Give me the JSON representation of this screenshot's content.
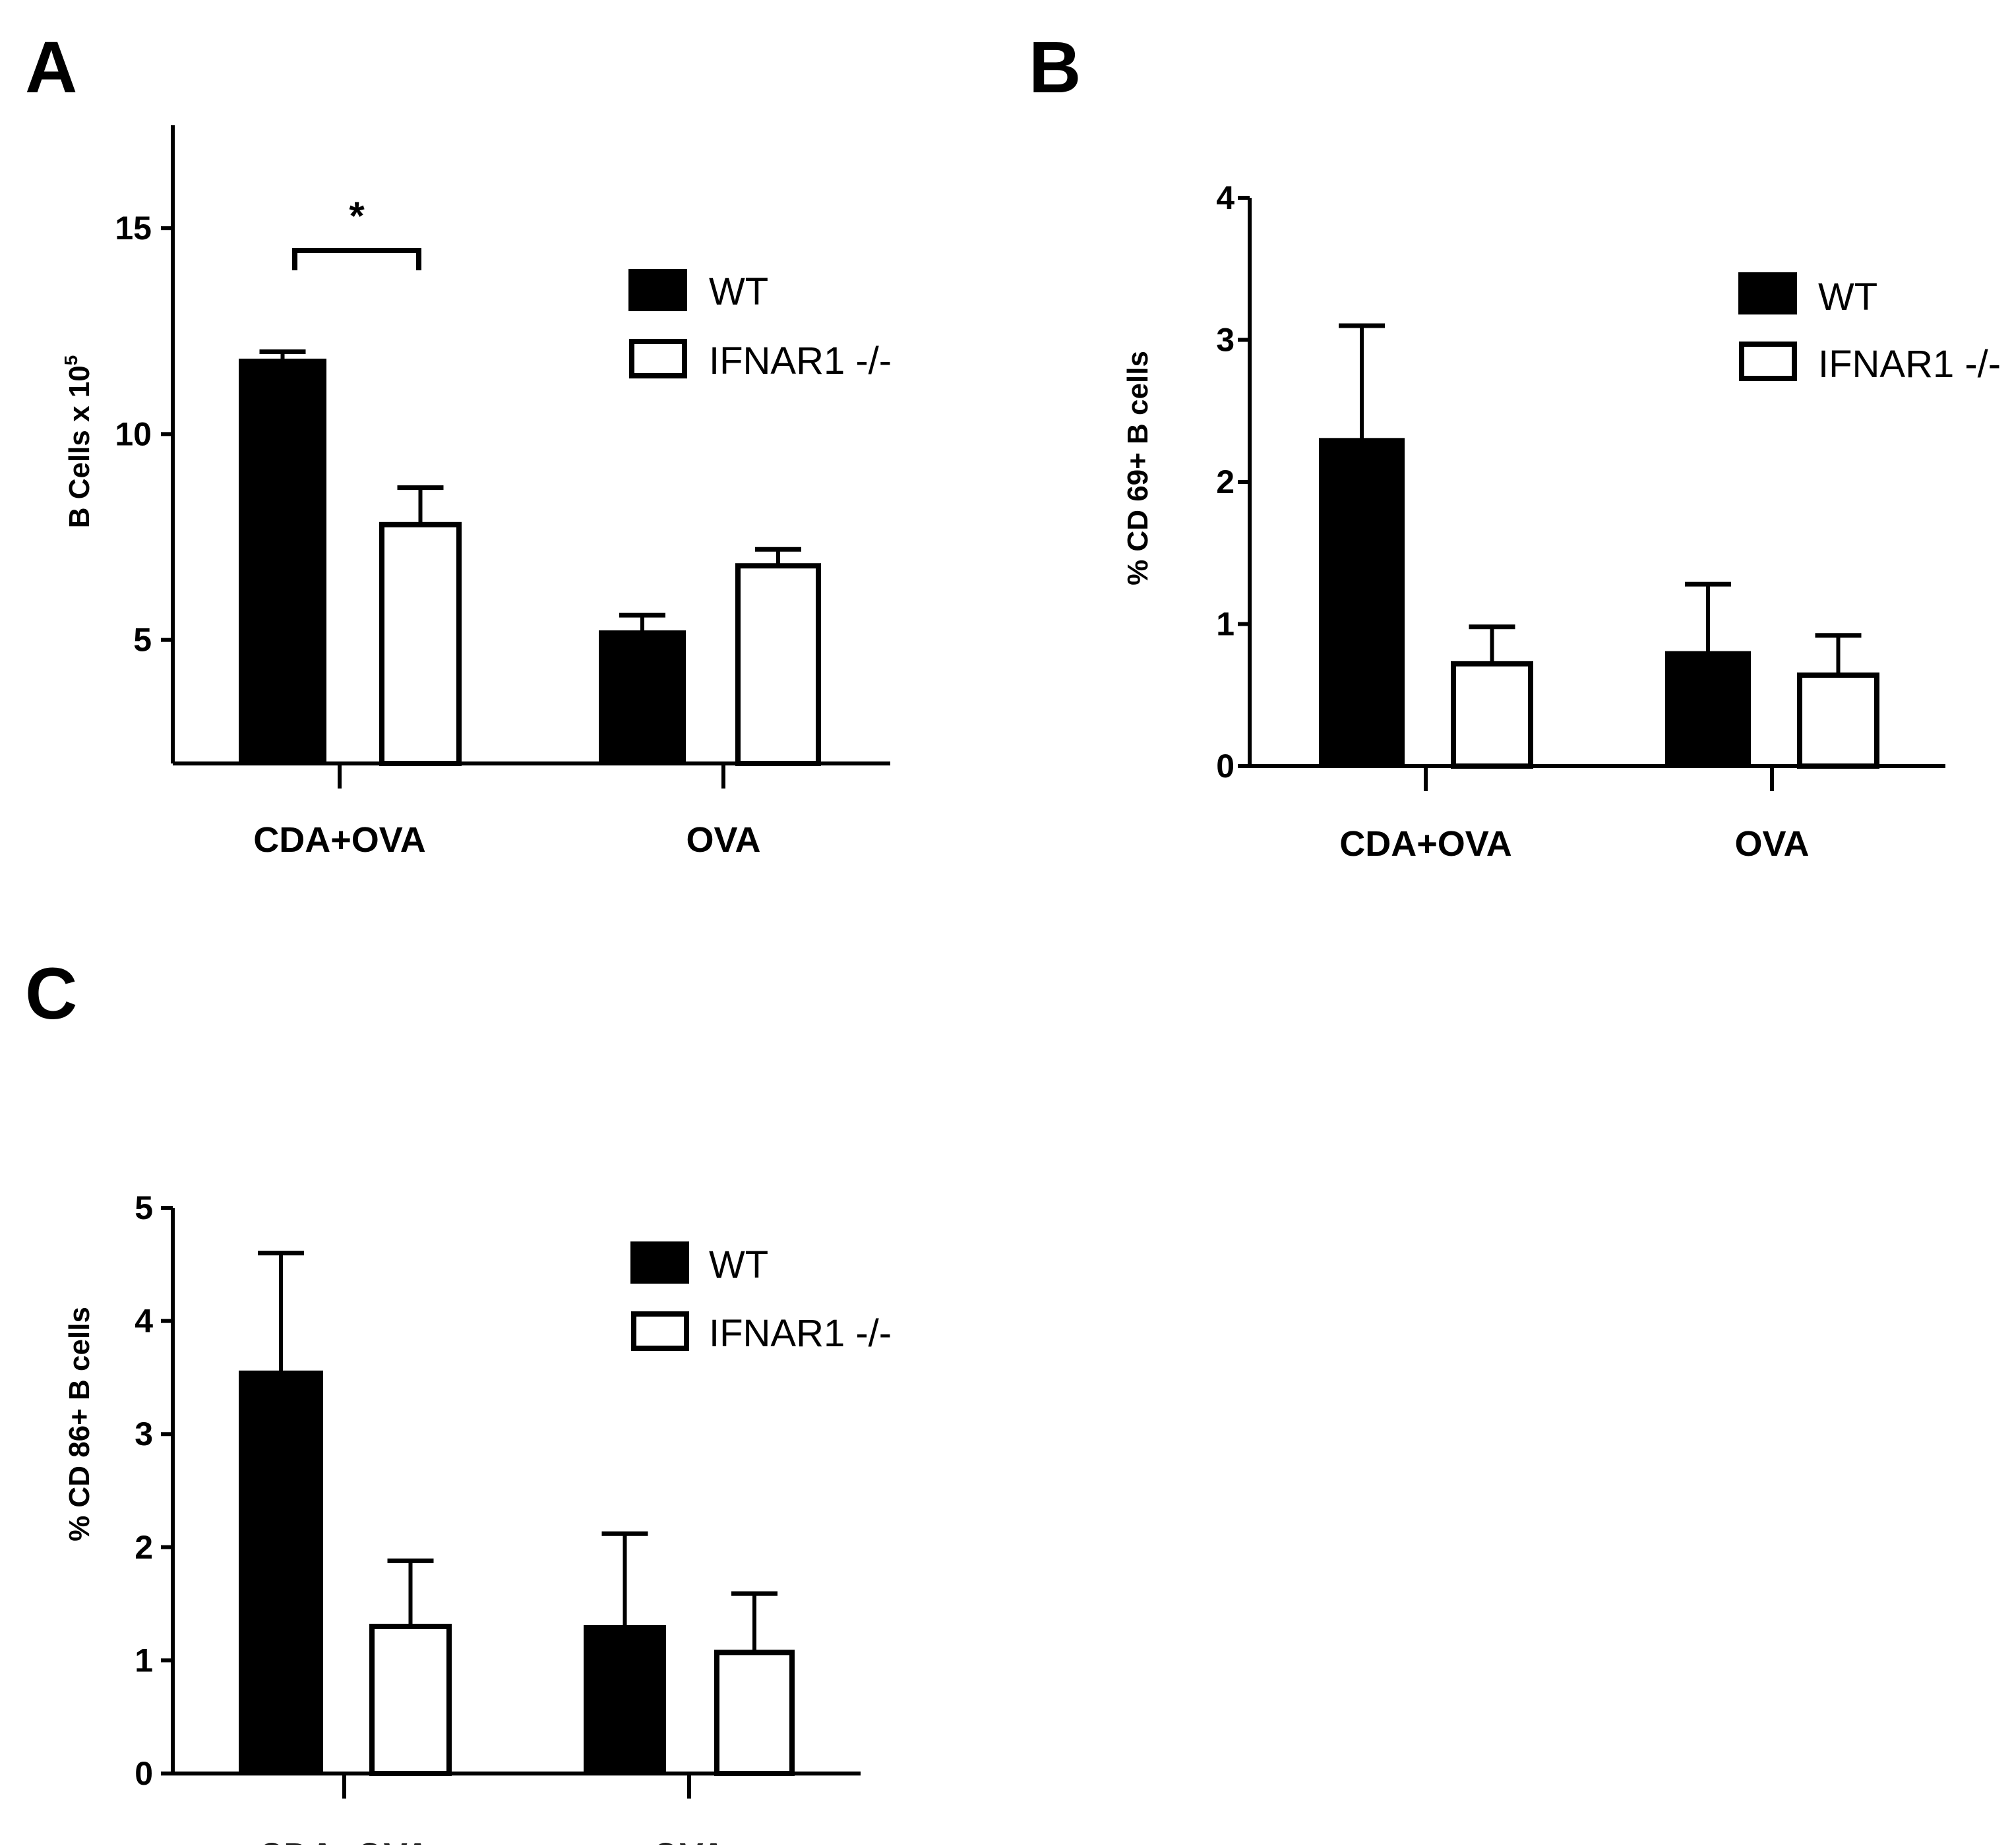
{
  "legend_labels": {
    "wt": "WT",
    "ko": "IFNAR1 -/-"
  },
  "colors": {
    "wt_fill": "#000000",
    "ko_fill": "#ffffff",
    "stroke": "#000000"
  },
  "chart_data": [
    {
      "panel_label": "A",
      "type": "bar",
      "categories": [
        "CDA+OVA",
        "OVA"
      ],
      "series": [
        {
          "name": "WT",
          "values": [
            11.8,
            5.2
          ],
          "errors": [
            0.2,
            0.4
          ]
        },
        {
          "name": "IFNAR1 -/-",
          "values": [
            7.8,
            6.8
          ],
          "errors": [
            0.9,
            0.4
          ]
        }
      ],
      "ylabel": "B Cells x 10",
      "ylabel_sup": "5",
      "ylim": [
        2.0,
        17.5
      ],
      "yticks": [
        5,
        10,
        15
      ],
      "ytick_labels": [
        "5",
        "10",
        "15"
      ],
      "significance": {
        "category": "CDA+OVA",
        "label": "*"
      },
      "legend_position": "top-right"
    },
    {
      "panel_label": "B",
      "type": "bar",
      "categories": [
        "CDA+OVA",
        "OVA"
      ],
      "series": [
        {
          "name": "WT",
          "values": [
            2.3,
            0.8
          ],
          "errors": [
            0.8,
            0.48
          ]
        },
        {
          "name": "IFNAR1 -/-",
          "values": [
            0.72,
            0.64
          ],
          "errors": [
            0.26,
            0.28
          ]
        }
      ],
      "ylabel": "% CD 69+ B cells",
      "ylim": [
        0,
        4
      ],
      "yticks": [
        0,
        1,
        2,
        3,
        4
      ],
      "ytick_labels": [
        "0",
        "1",
        "2",
        "3",
        "4"
      ],
      "legend_position": "top-right"
    },
    {
      "panel_label": "C",
      "type": "bar",
      "categories": [
        "CDA+OVA",
        "OVA"
      ],
      "series": [
        {
          "name": "WT",
          "values": [
            3.55,
            1.3
          ],
          "errors": [
            1.05,
            0.82
          ]
        },
        {
          "name": "IFNAR1 -/-",
          "values": [
            1.3,
            1.07
          ],
          "errors": [
            0.58,
            0.52
          ]
        }
      ],
      "ylabel": "% CD 86+ B cells",
      "ylim": [
        0,
        5
      ],
      "yticks": [
        0,
        1,
        2,
        3,
        4,
        5
      ],
      "ytick_labels": [
        "0",
        "1",
        "2",
        "3",
        "4",
        "5"
      ],
      "legend_position": "top-right"
    }
  ]
}
